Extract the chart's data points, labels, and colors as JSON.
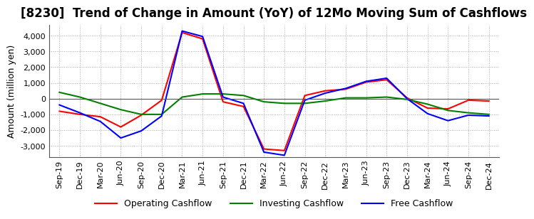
{
  "title": "[8230]  Trend of Change in Amount (YoY) of 12Mo Moving Sum of Cashflows",
  "ylabel": "Amount (million yen)",
  "x_labels": [
    "Sep-19",
    "Dec-19",
    "Mar-20",
    "Jun-20",
    "Sep-20",
    "Dec-20",
    "Mar-21",
    "Jun-21",
    "Sep-21",
    "Dec-21",
    "Mar-22",
    "Jun-22",
    "Sep-22",
    "Dec-22",
    "Mar-23",
    "Jun-23",
    "Sep-23",
    "Dec-23",
    "Mar-24",
    "Jun-24",
    "Sep-24",
    "Dec-24"
  ],
  "operating": [
    -800,
    -1000,
    -1150,
    -1800,
    -1050,
    -100,
    4200,
    3800,
    -200,
    -500,
    -3200,
    -3300,
    200,
    500,
    600,
    1050,
    1200,
    50,
    -600,
    -650,
    -100,
    -150
  ],
  "investing": [
    400,
    100,
    -300,
    -700,
    -1000,
    -1000,
    100,
    300,
    300,
    200,
    -200,
    -300,
    -300,
    -150,
    50,
    50,
    100,
    -50,
    -350,
    -750,
    -900,
    -1000
  ],
  "free": [
    -400,
    -900,
    -1450,
    -2500,
    -2050,
    -1100,
    4300,
    3950,
    100,
    -300,
    -3400,
    -3600,
    -100,
    350,
    650,
    1100,
    1300,
    0,
    -950,
    -1400,
    -1050,
    -1100
  ],
  "ylim": [
    -3700,
    4700
  ],
  "yticks": [
    -3000,
    -2000,
    -1000,
    0,
    1000,
    2000,
    3000,
    4000
  ],
  "operating_color": "#ff0000",
  "investing_color": "#008000",
  "free_color": "#0000ff",
  "background_color": "#ffffff",
  "grid_color": "#aaaaaa",
  "title_fontsize": 12,
  "axis_fontsize": 9,
  "tick_fontsize": 8,
  "legend_labels": [
    "Operating Cashflow",
    "Investing Cashflow",
    "Free Cashflow"
  ]
}
